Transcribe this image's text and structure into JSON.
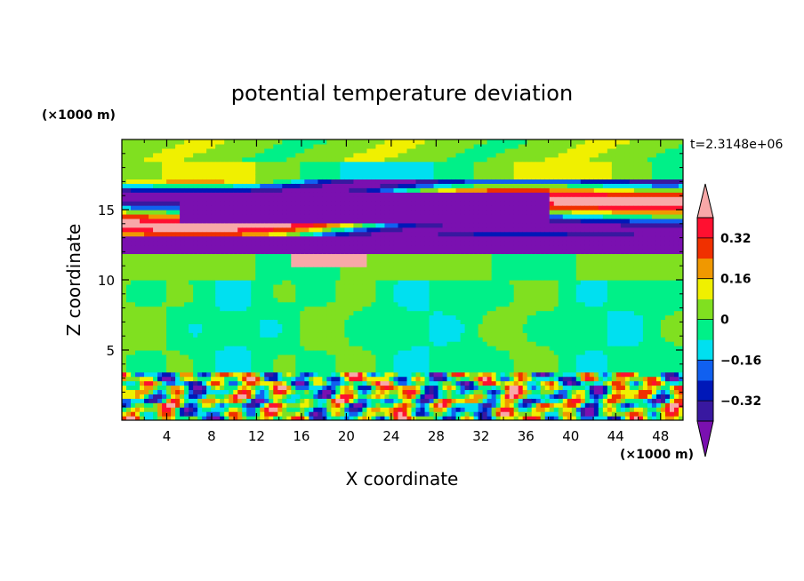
{
  "chart_data": {
    "type": "heatmap",
    "title": "potential temperature deviation",
    "xlabel": "X coordinate",
    "ylabel": "Z coordinate",
    "x_unit": "(×1000 m)",
    "y_unit": "(×1000 m)",
    "time_label": "t=2.3148e+06",
    "xlim": [
      0,
      50
    ],
    "ylim": [
      0,
      20
    ],
    "x_ticks": [
      4,
      8,
      12,
      16,
      20,
      24,
      28,
      32,
      36,
      40,
      44,
      48
    ],
    "y_ticks": [
      5,
      10,
      15
    ],
    "colorbar": {
      "levels": [
        -0.4,
        -0.32,
        -0.24,
        -0.16,
        -0.08,
        0,
        0.08,
        0.16,
        0.24,
        0.32,
        0.4
      ],
      "labels": [
        {
          "value": 0.32,
          "text": "0.32"
        },
        {
          "value": 0.16,
          "text": "0.16"
        },
        {
          "value": 0,
          "text": "0"
        },
        {
          "value": -0.16,
          "text": "−0.16"
        },
        {
          "value": -0.32,
          "text": "−0.32"
        }
      ],
      "colors": [
        "#7a10b0",
        "#3818a0",
        "#0018b8",
        "#1060f0",
        "#00e0f0",
        "#00f088",
        "#80e020",
        "#f0f000",
        "#f09800",
        "#f03000",
        "#ff1030",
        "#f8a8a8"
      ],
      "extend": "both"
    },
    "bands": [
      {
        "z": [
          0.0,
          3.5
        ],
        "pattern": "turbulent",
        "description": "boundary layer with mixed values from -0.32 to 0.32"
      },
      {
        "z": [
          3.5,
          10.0
        ],
        "value": -0.04
      },
      {
        "z": [
          10.0,
          12.0
        ],
        "value": 0.03
      },
      {
        "z": [
          12.0,
          13.0
        ],
        "value": -0.4
      },
      {
        "z": [
          13.0,
          17.0
        ],
        "pattern": "layered",
        "description": "alternating strong negative and positive layers"
      },
      {
        "z": [
          17.0,
          20.0
        ],
        "value": 0.04
      }
    ]
  },
  "colors": {
    "frame": "#000000",
    "background": "#ffffff"
  }
}
